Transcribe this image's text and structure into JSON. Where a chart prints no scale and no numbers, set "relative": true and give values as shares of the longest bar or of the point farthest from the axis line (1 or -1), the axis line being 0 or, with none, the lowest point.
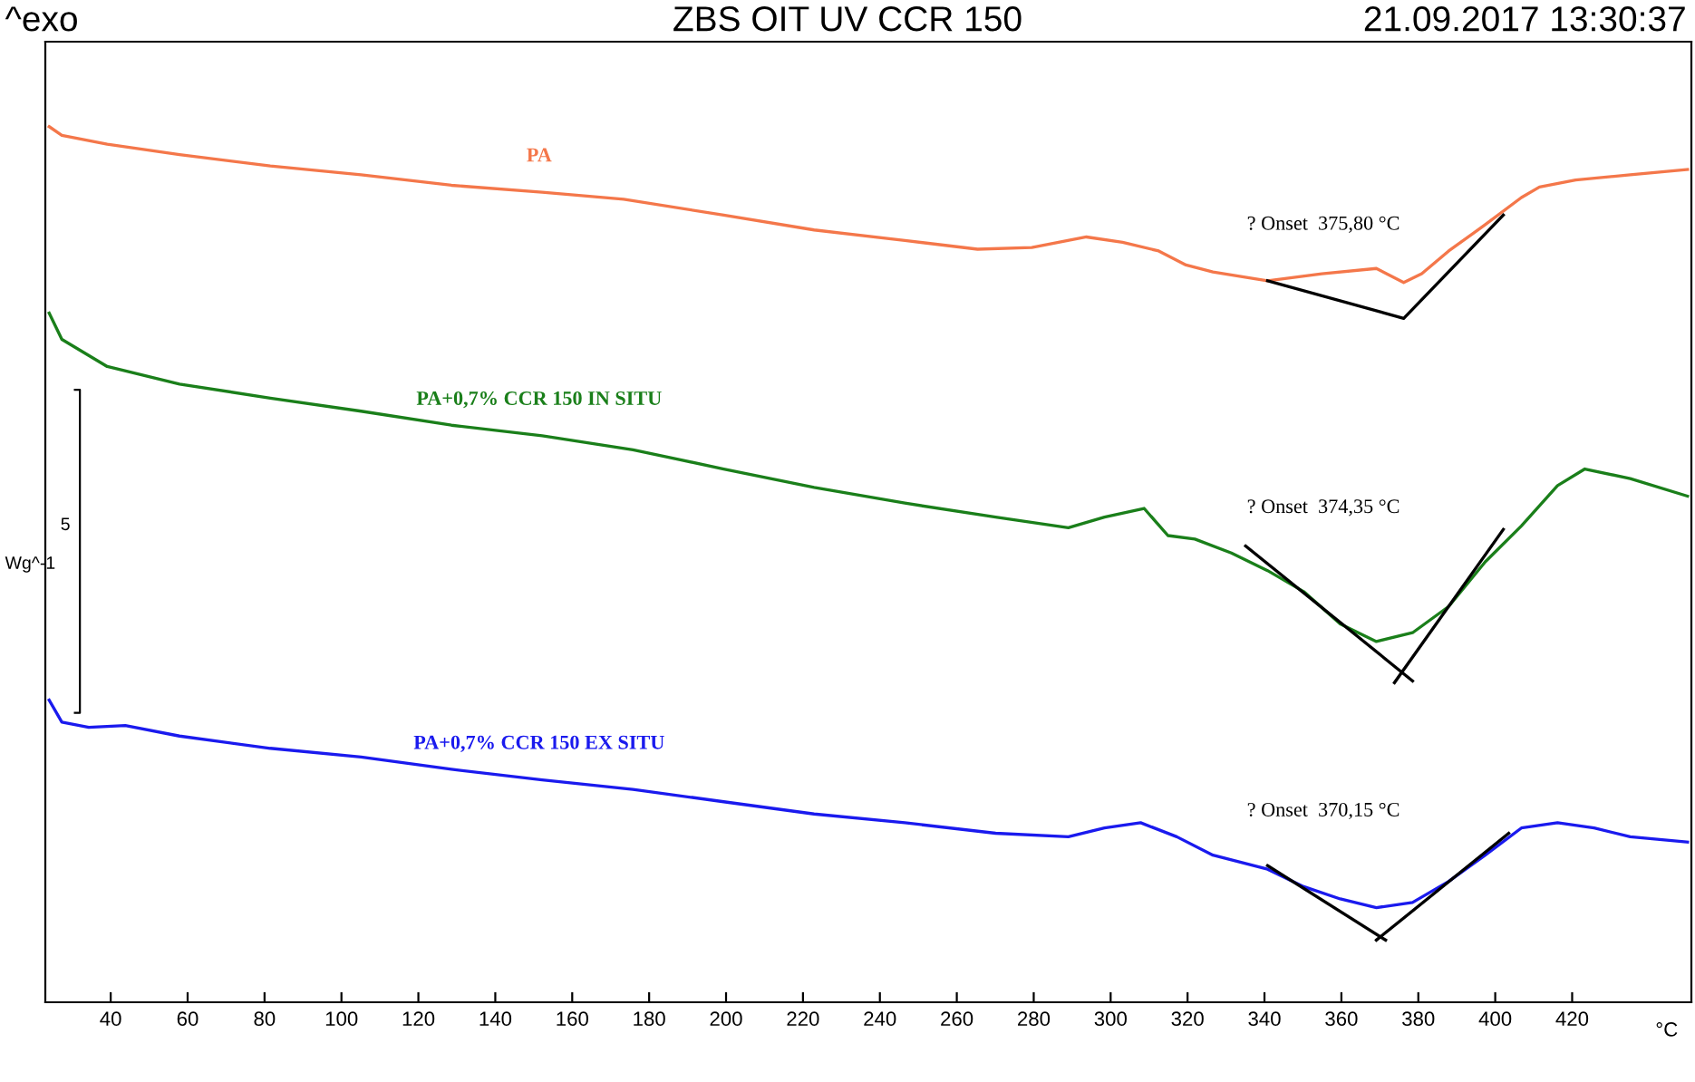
{
  "chart_data": {
    "type": "line",
    "title": "ZBS OIT UV CCR 150",
    "subtitle": "21.09.2017 13:30:37",
    "xlabel": "°C",
    "relative": true,
    "xlim": [
      23,
      451
    ],
    "xticks": [
      40,
      60,
      80,
      100,
      120,
      140,
      160,
      180,
      200,
      220,
      240,
      260,
      280,
      300,
      320,
      340,
      360,
      380,
      400,
      420
    ],
    "grid": false,
    "tick_labels": "x",
    "line_style": "solid",
    "marker": "none",
    "annotations": [
      "^exo",
      "5",
      "Wg^-1",
      "? Onset  375,80 °C",
      "? Onset  374,35 °C",
      "? Onset  370,15 °C"
    ],
    "series": [
      {
        "name": "PA",
        "color": "#f4774a",
        "x": [
          24.0,
          27.3,
          39.1,
          57.9,
          81.5,
          105.1,
          128.6,
          152.2,
          173.4,
          199.4,
          222.9,
          246.5,
          265.4,
          279.5,
          293.7,
          303.1,
          312.5,
          319.6,
          326.6,
          340.8,
          354.9,
          369.1,
          376.2,
          380.9,
          387.9,
          397.4,
          406.8,
          411.5,
          420.9,
          435.1,
          450
        ],
        "values": [
          1.0,
          0.99,
          0.98,
          0.968,
          0.955,
          0.945,
          0.933,
          0.925,
          0.917,
          0.899,
          0.882,
          0.87,
          0.86,
          0.862,
          0.874,
          0.868,
          0.858,
          0.842,
          0.834,
          0.824,
          0.832,
          0.838,
          0.822,
          0.832,
          0.858,
          0.888,
          0.919,
          0.931,
          0.939,
          0.945,
          0.951
        ]
      },
      {
        "name": "PA+0,7% CCR 150 IN SITU",
        "color": "#1a7f1a",
        "x": [
          24.0,
          27.3,
          39.1,
          57.9,
          81.5,
          105.1,
          128.6,
          152.2,
          175.8,
          199.4,
          222.9,
          246.5,
          270.1,
          289.0,
          298.4,
          308.7,
          314.9,
          321.9,
          331.4,
          340.8,
          350.2,
          359.7,
          369.1,
          378.5,
          387.9,
          397.4,
          406.8,
          416.2,
          423.3,
          435.1,
          450
        ],
        "values": [
          0.787,
          0.757,
          0.726,
          0.706,
          0.69,
          0.675,
          0.659,
          0.647,
          0.631,
          0.609,
          0.588,
          0.57,
          0.554,
          0.542,
          0.554,
          0.564,
          0.533,
          0.529,
          0.513,
          0.493,
          0.469,
          0.432,
          0.412,
          0.422,
          0.452,
          0.503,
          0.544,
          0.59,
          0.609,
          0.598,
          0.578
        ]
      },
      {
        "name": "PA+0,7% CCR 150 EX SITU",
        "color": "#1a1aee",
        "x": [
          24.0,
          27.3,
          34.3,
          43.8,
          57.9,
          81.5,
          105.1,
          128.6,
          152.2,
          175.8,
          199.4,
          222.9,
          246.5,
          270.1,
          289.0,
          298.4,
          307.8,
          317.2,
          326.6,
          340.8,
          350.2,
          359.7,
          369.1,
          378.5,
          387.9,
          397.4,
          406.8,
          416.2,
          425.7,
          435.1,
          450
        ],
        "values": [
          0.345,
          0.32,
          0.314,
          0.316,
          0.304,
          0.29,
          0.28,
          0.266,
          0.254,
          0.243,
          0.229,
          0.215,
          0.205,
          0.193,
          0.189,
          0.199,
          0.205,
          0.189,
          0.168,
          0.152,
          0.132,
          0.118,
          0.108,
          0.114,
          0.138,
          0.168,
          0.199,
          0.205,
          0.199,
          0.189,
          0.183
        ]
      },
      {
        "color": "#000000",
        "x": [
          340.8,
          376.2,
          402.1
        ],
        "values": [
          0.824,
          0.781,
          0.899
        ]
      },
      {
        "color": "#000000",
        "x": [
          335.1,
          378.5
        ],
        "values": [
          0.521,
          0.367
        ]
      },
      {
        "color": "#000000",
        "x": [
          373.8,
          402.1
        ],
        "values": [
          0.365,
          0.54
        ]
      },
      {
        "color": "#000000",
        "x": [
          340.8,
          371.5
        ],
        "values": [
          0.156,
          0.071
        ]
      },
      {
        "color": "#000000",
        "x": [
          369.1,
          403.5
        ],
        "values": [
          0.071,
          0.193
        ]
      }
    ]
  }
}
